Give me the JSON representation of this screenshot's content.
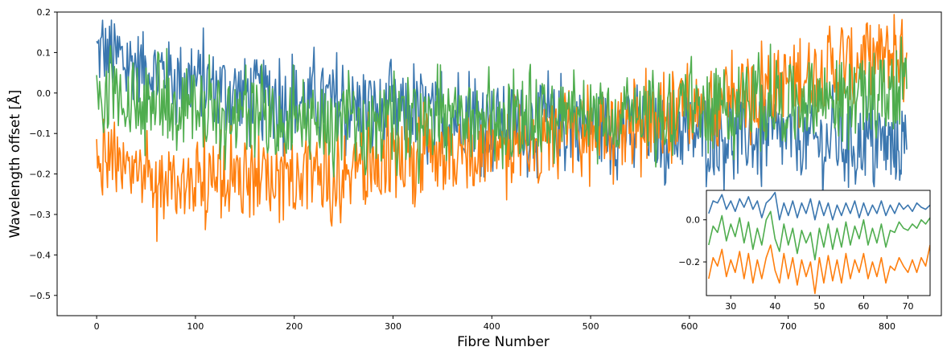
{
  "chart_data": [
    {
      "type": "line",
      "title": "",
      "xlabel": "Fibre Number",
      "ylabel": "Wavelength offset [Å]",
      "xlim": [
        -40,
        855
      ],
      "ylim": [
        -0.55,
        0.2
      ],
      "xticks": [
        0,
        100,
        200,
        300,
        400,
        500,
        600,
        700,
        800
      ],
      "yticks": [
        -0.5,
        -0.4,
        -0.3,
        -0.2,
        -0.1,
        0.0,
        0.1,
        0.2
      ],
      "ytick_labels": [
        "−0.5",
        "−0.4",
        "−0.3",
        "−0.2",
        "−0.1",
        "0.0",
        "0.1",
        "0.2"
      ],
      "grid": false,
      "legend": "none",
      "series": [
        {
          "color": "#3a76af",
          "x": [
            0,
            25,
            50,
            75,
            100,
            125,
            150,
            175,
            200,
            225,
            250,
            275,
            300,
            325,
            350,
            375,
            400,
            425,
            450,
            475,
            500,
            525,
            550,
            575,
            600,
            625,
            650,
            675,
            700,
            725,
            750,
            775,
            800,
            820
          ],
          "y": [
            0.1,
            0.08,
            0.06,
            0.04,
            0.03,
            0.01,
            0.0,
            -0.01,
            -0.02,
            -0.02,
            -0.03,
            -0.04,
            -0.05,
            -0.05,
            -0.06,
            -0.06,
            -0.07,
            -0.07,
            -0.07,
            -0.08,
            -0.08,
            -0.09,
            -0.09,
            -0.1,
            -0.1,
            -0.1,
            -0.11,
            -0.11,
            -0.11,
            -0.12,
            -0.12,
            -0.12,
            -0.13,
            -0.14
          ]
        },
        {
          "color": "#ff7f0e",
          "x": [
            0,
            25,
            50,
            75,
            100,
            125,
            150,
            175,
            200,
            225,
            250,
            275,
            300,
            325,
            350,
            375,
            400,
            425,
            450,
            475,
            500,
            525,
            550,
            575,
            600,
            625,
            650,
            675,
            700,
            725,
            750,
            775,
            800,
            820
          ],
          "y": [
            -0.15,
            -0.2,
            -0.23,
            -0.22,
            -0.21,
            -0.22,
            -0.22,
            -0.21,
            -0.21,
            -0.2,
            -0.19,
            -0.18,
            -0.17,
            -0.16,
            -0.15,
            -0.15,
            -0.14,
            -0.13,
            -0.12,
            -0.11,
            -0.1,
            -0.09,
            -0.08,
            -0.06,
            -0.05,
            -0.03,
            -0.01,
            0.01,
            0.03,
            0.05,
            0.06,
            0.08,
            0.09,
            0.1
          ]
        },
        {
          "color": "#4fad4e",
          "x": [
            0,
            25,
            50,
            75,
            100,
            125,
            150,
            175,
            200,
            225,
            250,
            275,
            300,
            325,
            350,
            375,
            400,
            425,
            450,
            475,
            500,
            525,
            550,
            575,
            600,
            625,
            650,
            675,
            700,
            725,
            750,
            775,
            800,
            820
          ],
          "y": [
            0.0,
            -0.01,
            -0.02,
            -0.03,
            -0.04,
            -0.05,
            -0.06,
            -0.07,
            -0.07,
            -0.08,
            -0.08,
            -0.08,
            -0.08,
            -0.08,
            -0.07,
            -0.07,
            -0.07,
            -0.06,
            -0.06,
            -0.06,
            -0.05,
            -0.05,
            -0.04,
            -0.04,
            -0.03,
            -0.03,
            -0.02,
            -0.02,
            -0.02,
            -0.01,
            -0.01,
            -0.01,
            0.0,
            0.01
          ]
        }
      ]
    },
    {
      "type": "line",
      "title": "",
      "xlabel": "",
      "ylabel": "",
      "xlim": [
        24.5,
        75
      ],
      "ylim": [
        -0.36,
        0.14
      ],
      "xticks": [
        30,
        40,
        50,
        60,
        70
      ],
      "yticks": [
        -0.2,
        0.0
      ],
      "ytick_labels": [
        "−0.2",
        "0.0"
      ],
      "grid": false,
      "legend": "none",
      "series": [
        {
          "color": "#3a76af",
          "x": [
            25,
            26,
            27,
            28,
            29,
            30,
            31,
            32,
            33,
            34,
            35,
            36,
            37,
            38,
            39,
            40,
            41,
            42,
            43,
            44,
            45,
            46,
            47,
            48,
            49,
            50,
            51,
            52,
            53,
            54,
            55,
            56,
            57,
            58,
            59,
            60,
            61,
            62,
            63,
            64,
            65,
            66,
            67,
            68,
            69,
            70,
            71,
            72,
            73,
            74,
            75
          ],
          "y": [
            0.03,
            0.09,
            0.08,
            0.12,
            0.05,
            0.09,
            0.04,
            0.1,
            0.06,
            0.11,
            0.05,
            0.09,
            0.01,
            0.08,
            0.1,
            0.13,
            0.0,
            0.08,
            0.02,
            0.09,
            0.01,
            0.08,
            0.03,
            0.1,
            0.0,
            0.09,
            0.02,
            0.08,
            0.0,
            0.07,
            0.02,
            0.08,
            0.03,
            0.09,
            0.01,
            0.08,
            0.02,
            0.07,
            0.03,
            0.09,
            0.02,
            0.07,
            0.03,
            0.08,
            0.05,
            0.07,
            0.04,
            0.08,
            0.06,
            0.05,
            0.07
          ]
        },
        {
          "color": "#ff7f0e",
          "x": [
            25,
            26,
            27,
            28,
            29,
            30,
            31,
            32,
            33,
            34,
            35,
            36,
            37,
            38,
            39,
            40,
            41,
            42,
            43,
            44,
            45,
            46,
            47,
            48,
            49,
            50,
            51,
            52,
            53,
            54,
            55,
            56,
            57,
            58,
            59,
            60,
            61,
            62,
            63,
            64,
            65,
            66,
            67,
            68,
            69,
            70,
            71,
            72,
            73,
            74,
            75
          ],
          "y": [
            -0.28,
            -0.18,
            -0.22,
            -0.14,
            -0.27,
            -0.19,
            -0.25,
            -0.15,
            -0.28,
            -0.16,
            -0.3,
            -0.19,
            -0.28,
            -0.18,
            -0.12,
            -0.24,
            -0.3,
            -0.16,
            -0.28,
            -0.18,
            -0.31,
            -0.19,
            -0.27,
            -0.2,
            -0.35,
            -0.18,
            -0.3,
            -0.17,
            -0.29,
            -0.19,
            -0.3,
            -0.16,
            -0.28,
            -0.19,
            -0.25,
            -0.16,
            -0.28,
            -0.2,
            -0.27,
            -0.18,
            -0.3,
            -0.22,
            -0.24,
            -0.18,
            -0.22,
            -0.25,
            -0.19,
            -0.25,
            -0.18,
            -0.22,
            -0.12
          ]
        },
        {
          "color": "#4fad4e",
          "x": [
            25,
            26,
            27,
            28,
            29,
            30,
            31,
            32,
            33,
            34,
            35,
            36,
            37,
            38,
            39,
            40,
            41,
            42,
            43,
            44,
            45,
            46,
            47,
            48,
            49,
            50,
            51,
            52,
            53,
            54,
            55,
            56,
            57,
            58,
            59,
            60,
            61,
            62,
            63,
            64,
            65,
            66,
            67,
            68,
            69,
            70,
            71,
            72,
            73,
            74,
            75
          ],
          "y": [
            -0.12,
            -0.03,
            -0.06,
            0.02,
            -0.1,
            -0.02,
            -0.08,
            0.01,
            -0.11,
            -0.01,
            -0.14,
            -0.04,
            -0.12,
            0.0,
            0.04,
            -0.09,
            -0.15,
            -0.02,
            -0.12,
            -0.04,
            -0.16,
            -0.05,
            -0.11,
            -0.06,
            -0.19,
            -0.04,
            -0.13,
            -0.02,
            -0.14,
            -0.04,
            -0.13,
            -0.01,
            -0.12,
            -0.03,
            -0.09,
            0.0,
            -0.12,
            -0.04,
            -0.11,
            -0.02,
            -0.13,
            -0.05,
            -0.06,
            -0.01,
            -0.04,
            -0.05,
            -0.02,
            -0.04,
            0.0,
            -0.02,
            0.01
          ]
        }
      ]
    }
  ]
}
